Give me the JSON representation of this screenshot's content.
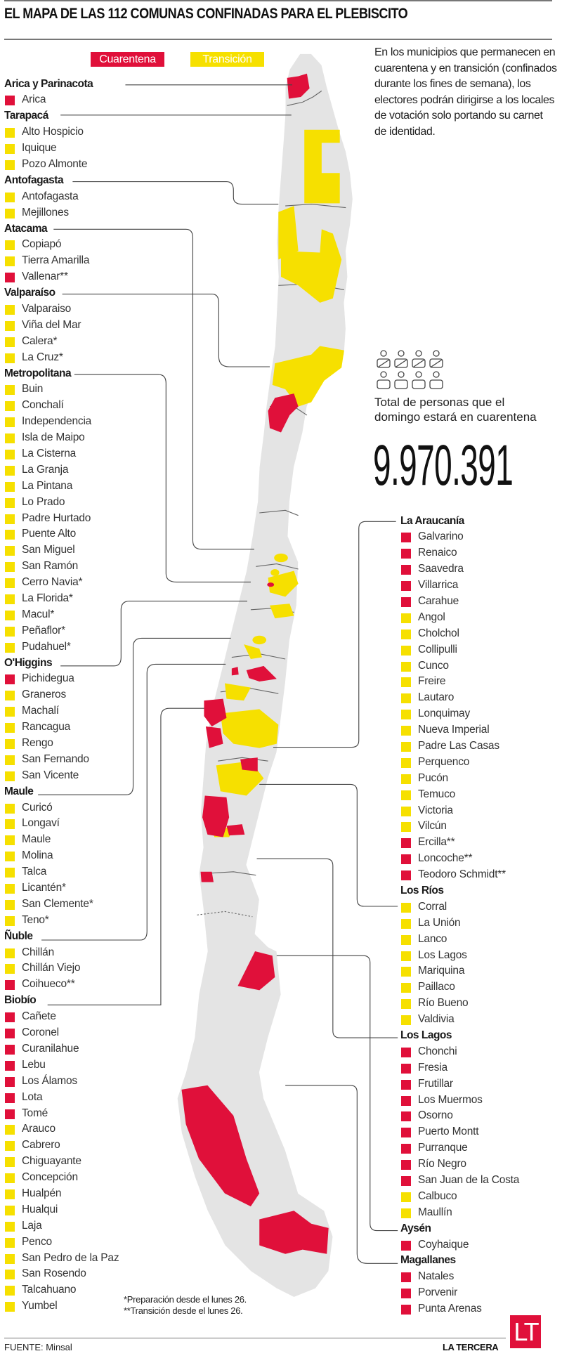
{
  "title": "EL MAPA DE LAS 112 COMUNAS CONFINADAS PARA EL PLEBISCITO",
  "legend": {
    "quarantine": "Cuarentena",
    "transition": "Transición"
  },
  "colors": {
    "quarantine": "#e0103a",
    "transition": "#f6e000",
    "land": "#e4e4e4"
  },
  "intro": "En los municipios que permanecen en cuarentena y en transición (confinados durante los fines de semana), los electores podrán dirigirse a los locales de votación solo portando su carnet de identidad.",
  "stat": {
    "label": "Total de personas que el domingo estará en cuarentena",
    "value": "9.970.391",
    "icon": "voters-icon"
  },
  "left_groups": [
    {
      "region": "Arica y Parinacota",
      "items": [
        {
          "name": "Arica",
          "status": "q"
        }
      ]
    },
    {
      "region": "Tarapacá",
      "items": [
        {
          "name": "Alto Hospicio",
          "status": "t"
        },
        {
          "name": "Iquique",
          "status": "t"
        },
        {
          "name": "Pozo Almonte",
          "status": "t"
        }
      ]
    },
    {
      "region": "Antofagasta",
      "items": [
        {
          "name": "Antofagasta",
          "status": "t"
        },
        {
          "name": "Mejillones",
          "status": "t"
        }
      ]
    },
    {
      "region": "Atacama",
      "items": [
        {
          "name": "Copiapó",
          "status": "t"
        },
        {
          "name": "Tierra Amarilla",
          "status": "t"
        },
        {
          "name": "Vallenar**",
          "status": "q"
        }
      ]
    },
    {
      "region": "Valparaíso",
      "items": [
        {
          "name": "Valparaiso",
          "status": "t"
        },
        {
          "name": "Viña del Mar",
          "status": "t"
        },
        {
          "name": "Calera*",
          "status": "t"
        },
        {
          "name": "La Cruz*",
          "status": "t"
        }
      ]
    },
    {
      "region": "Metropolitana",
      "items": [
        {
          "name": "Buin",
          "status": "t"
        },
        {
          "name": "Conchalí",
          "status": "t"
        },
        {
          "name": "Independencia",
          "status": "t"
        },
        {
          "name": "Isla de Maipo",
          "status": "t"
        },
        {
          "name": "La Cisterna",
          "status": "t"
        },
        {
          "name": "La Granja",
          "status": "t"
        },
        {
          "name": "La Pintana",
          "status": "t"
        },
        {
          "name": "Lo Prado",
          "status": "t"
        },
        {
          "name": "Padre Hurtado",
          "status": "t"
        },
        {
          "name": "Puente Alto",
          "status": "t"
        },
        {
          "name": "San Miguel",
          "status": "t"
        },
        {
          "name": "San Ramón",
          "status": "t"
        },
        {
          "name": "Cerro Navia*",
          "status": "t"
        },
        {
          "name": "La Florida*",
          "status": "t"
        },
        {
          "name": "Macul*",
          "status": "t"
        },
        {
          "name": "Peñaflor*",
          "status": "t"
        },
        {
          "name": "Pudahuel*",
          "status": "t"
        }
      ]
    },
    {
      "region": "O'Higgins",
      "items": [
        {
          "name": "Pichidegua",
          "status": "q"
        },
        {
          "name": "Graneros",
          "status": "t"
        },
        {
          "name": "Machalí",
          "status": "t"
        },
        {
          "name": "Rancagua",
          "status": "t"
        },
        {
          "name": "Rengo",
          "status": "t"
        },
        {
          "name": "San Fernando",
          "status": "t"
        },
        {
          "name": "San Vicente",
          "status": "t"
        }
      ]
    },
    {
      "region": "Maule",
      "items": [
        {
          "name": "Curicó",
          "status": "t"
        },
        {
          "name": "Longaví",
          "status": "t"
        },
        {
          "name": "Maule",
          "status": "t"
        },
        {
          "name": "Molina",
          "status": "t"
        },
        {
          "name": "Talca",
          "status": "t"
        },
        {
          "name": "Licantén*",
          "status": "t"
        },
        {
          "name": "San Clemente*",
          "status": "t"
        },
        {
          "name": "Teno*",
          "status": "t"
        }
      ]
    },
    {
      "region": "Ñuble",
      "items": [
        {
          "name": "Chillán",
          "status": "t"
        },
        {
          "name": "Chillán Viejo",
          "status": "t"
        },
        {
          "name": "Coihueco**",
          "status": "q"
        }
      ]
    },
    {
      "region": "Biobío",
      "items": [
        {
          "name": "Cañete",
          "status": "q"
        },
        {
          "name": "Coronel",
          "status": "q"
        },
        {
          "name": "Curanilahue",
          "status": "q"
        },
        {
          "name": "Lebu",
          "status": "q"
        },
        {
          "name": "Los Álamos",
          "status": "q"
        },
        {
          "name": "Lota",
          "status": "q"
        },
        {
          "name": "Tomé",
          "status": "q"
        },
        {
          "name": "Arauco",
          "status": "t"
        },
        {
          "name": "Cabrero",
          "status": "t"
        },
        {
          "name": "Chiguayante",
          "status": "t"
        },
        {
          "name": "Concepción",
          "status": "t"
        },
        {
          "name": "Hualpén",
          "status": "t"
        },
        {
          "name": "Hualqui",
          "status": "t"
        },
        {
          "name": "Laja",
          "status": "t"
        },
        {
          "name": "Penco",
          "status": "t"
        },
        {
          "name": "San Pedro de la Paz",
          "status": "t"
        },
        {
          "name": "San Rosendo",
          "status": "t"
        },
        {
          "name": "Talcahuano",
          "status": "t"
        },
        {
          "name": "Yumbel",
          "status": "t"
        }
      ]
    }
  ],
  "right_groups": [
    {
      "region": "La Araucanía",
      "items": [
        {
          "name": "Galvarino",
          "status": "q"
        },
        {
          "name": "Renaico",
          "status": "q"
        },
        {
          "name": "Saavedra",
          "status": "q"
        },
        {
          "name": "Villarrica",
          "status": "q"
        },
        {
          "name": "Carahue",
          "status": "q"
        },
        {
          "name": "Angol",
          "status": "t"
        },
        {
          "name": "Cholchol",
          "status": "t"
        },
        {
          "name": "Collipulli",
          "status": "t"
        },
        {
          "name": "Cunco",
          "status": "t"
        },
        {
          "name": "Freire",
          "status": "t"
        },
        {
          "name": "Lautaro",
          "status": "t"
        },
        {
          "name": "Lonquimay",
          "status": "t"
        },
        {
          "name": "Nueva Imperial",
          "status": "t"
        },
        {
          "name": "Padre Las Casas",
          "status": "t"
        },
        {
          "name": "Perquenco",
          "status": "t"
        },
        {
          "name": "Pucón",
          "status": "t"
        },
        {
          "name": "Temuco",
          "status": "t"
        },
        {
          "name": "Victoria",
          "status": "t"
        },
        {
          "name": "Vilcún",
          "status": "t"
        },
        {
          "name": "Ercilla**",
          "status": "q"
        },
        {
          "name": "Loncoche**",
          "status": "q"
        },
        {
          "name": "Teodoro Schmidt**",
          "status": "q"
        }
      ]
    },
    {
      "region": "Los Ríos",
      "items": [
        {
          "name": "Corral",
          "status": "t"
        },
        {
          "name": "La Unión",
          "status": "t"
        },
        {
          "name": "Lanco",
          "status": "t"
        },
        {
          "name": "Los Lagos",
          "status": "t"
        },
        {
          "name": "Mariquina",
          "status": "t"
        },
        {
          "name": "Paillaco",
          "status": "t"
        },
        {
          "name": "Río Bueno",
          "status": "t"
        },
        {
          "name": "Valdivia",
          "status": "t"
        }
      ]
    },
    {
      "region": "Los Lagos",
      "items": [
        {
          "name": "Chonchi",
          "status": "q"
        },
        {
          "name": "Fresia",
          "status": "q"
        },
        {
          "name": "Frutillar",
          "status": "q"
        },
        {
          "name": "Los Muermos",
          "status": "q"
        },
        {
          "name": "Osorno",
          "status": "q"
        },
        {
          "name": "Puerto Montt",
          "status": "q"
        },
        {
          "name": "Purranque",
          "status": "q"
        },
        {
          "name": "Río Negro",
          "status": "q"
        },
        {
          "name": "San Juan de la Costa",
          "status": "q"
        },
        {
          "name": "Calbuco",
          "status": "t"
        },
        {
          "name": "Maullín",
          "status": "t"
        }
      ]
    },
    {
      "region": "Aysén",
      "items": [
        {
          "name": "Coyhaique",
          "status": "q"
        }
      ]
    },
    {
      "region": "Magallanes",
      "items": [
        {
          "name": "Natales",
          "status": "q"
        },
        {
          "name": "Porvenir",
          "status": "q"
        },
        {
          "name": "Punta Arenas",
          "status": "q"
        }
      ]
    }
  ],
  "footnotes": [
    "*Preparación desde el lunes 26.",
    "**Transición desde el lunes 26."
  ],
  "footer": {
    "source": "FUENTE: Minsal",
    "brand": "LA TERCERA",
    "logo": "LT"
  }
}
